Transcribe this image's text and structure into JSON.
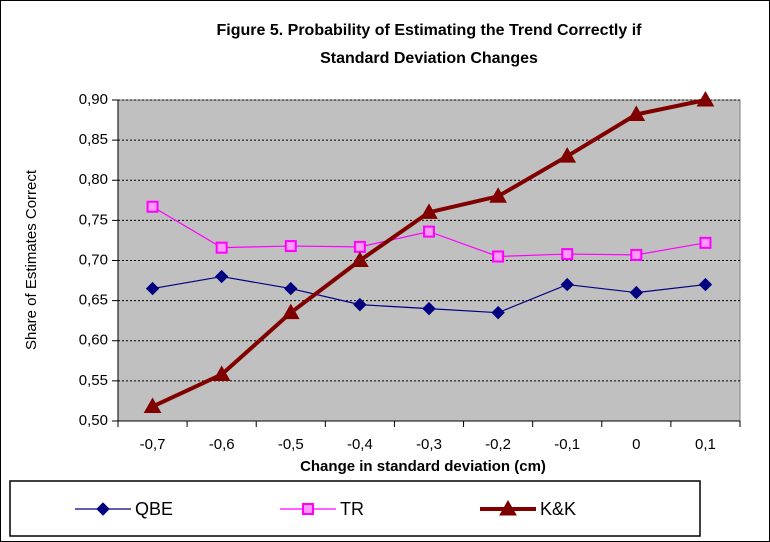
{
  "chart_data": {
    "type": "line",
    "title": [
      "Figure 5. Probability of Estimating the Trend Correctly if",
      "Standard Deviation Changes"
    ],
    "x_label": "Change in standard deviation (cm)",
    "y_label": "Share of Estimates Correct",
    "categories": [
      "-0,7",
      "-0,6",
      "-0,5",
      "-0,4",
      "-0,3",
      "-0,2",
      "-0,1",
      "0",
      "0,1"
    ],
    "series": [
      {
        "name": "QBE",
        "color": "#000080",
        "marker": "diamond",
        "values": [
          0.665,
          0.68,
          0.665,
          0.645,
          0.64,
          0.635,
          0.67,
          0.66,
          0.67
        ]
      },
      {
        "name": "TR",
        "color": "#ff00ff",
        "marker": "square",
        "values": [
          0.767,
          0.716,
          0.718,
          0.717,
          0.736,
          0.705,
          0.708,
          0.707,
          0.722
        ]
      },
      {
        "name": "K&K",
        "color": "#800000",
        "marker": "triangle",
        "values": [
          0.518,
          0.558,
          0.635,
          0.7,
          0.76,
          0.78,
          0.83,
          0.882,
          0.9
        ]
      }
    ],
    "ylim": [
      0.5,
      0.9
    ],
    "yticks": [
      {
        "value": 0.5,
        "label": "0,50"
      },
      {
        "value": 0.55,
        "label": "0,55"
      },
      {
        "value": 0.6,
        "label": "0,60"
      },
      {
        "value": 0.65,
        "label": "0,65"
      },
      {
        "value": 0.7,
        "label": "0,70"
      },
      {
        "value": 0.75,
        "label": "0,75"
      },
      {
        "value": 0.8,
        "label": "0,80"
      },
      {
        "value": 0.85,
        "label": "0,85"
      },
      {
        "value": 0.9,
        "label": "0,90"
      }
    ],
    "grid": true,
    "legend": "bottom"
  }
}
